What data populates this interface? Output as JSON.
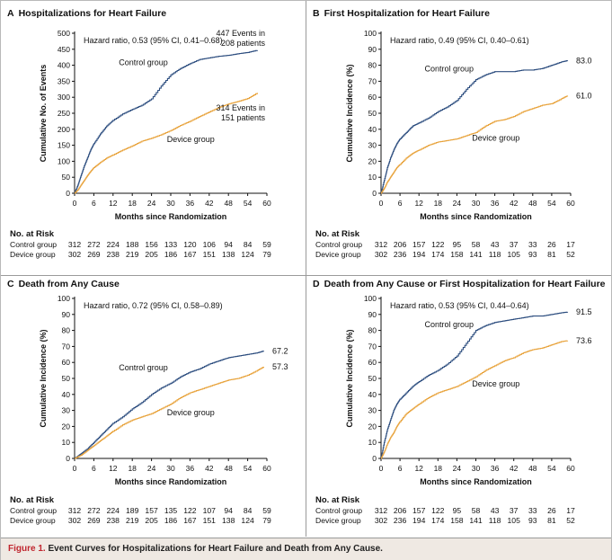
{
  "colors": {
    "control": "#2b4c7e",
    "device": "#e8a33c",
    "caption_label": "#c0262f"
  },
  "caption": {
    "label": "Figure 1.",
    "text": "Event Curves for Hospitalizations for Heart Failure and Death from Any Cause."
  },
  "common": {
    "xlabel": "Months since Randomization",
    "risk_header": "No. at Risk",
    "control_label": "Control group",
    "device_label": "Device group"
  },
  "chart_data": [
    {
      "letter": "A",
      "title": "Hospitalizations for Heart Failure",
      "type": "line",
      "ylabel": "Cumulative No. of Events",
      "ylim": [
        0,
        500
      ],
      "yticks": [
        0,
        50,
        100,
        150,
        200,
        250,
        300,
        350,
        400,
        450,
        500
      ],
      "xlim": [
        0,
        60
      ],
      "xticks": [
        0,
        6,
        12,
        18,
        24,
        30,
        36,
        42,
        48,
        54,
        60
      ],
      "hazard_ratio": "Hazard ratio, 0.53 (95% CI, 0.41–0.68)",
      "control_end": "",
      "device_end": "",
      "control_events_note": [
        "447 Events in",
        "208 patients"
      ],
      "device_events_note": [
        "314 Events in",
        "151 patients"
      ],
      "series": [
        {
          "name": "Control group",
          "x": [
            0,
            1,
            2,
            3,
            4,
            5,
            6,
            8,
            10,
            12,
            15,
            18,
            21,
            24,
            27,
            30,
            33,
            36,
            39,
            42,
            45,
            48,
            51,
            54,
            57
          ],
          "y": [
            0,
            25,
            55,
            85,
            110,
            135,
            155,
            185,
            210,
            228,
            248,
            262,
            275,
            295,
            335,
            370,
            390,
            405,
            418,
            423,
            428,
            431,
            436,
            440,
            447
          ]
        },
        {
          "name": "Device group",
          "x": [
            0,
            1,
            2,
            3,
            4,
            5,
            6,
            8,
            10,
            12,
            15,
            18,
            21,
            24,
            27,
            30,
            33,
            36,
            39,
            42,
            45,
            48,
            51,
            54,
            57
          ],
          "y": [
            0,
            10,
            25,
            40,
            55,
            68,
            80,
            96,
            110,
            120,
            135,
            148,
            163,
            172,
            183,
            196,
            212,
            225,
            240,
            254,
            268,
            279,
            287,
            296,
            314
          ]
        }
      ],
      "at_risk": {
        "control": [
          "312",
          "272",
          "224",
          "188",
          "156",
          "133",
          "120",
          "106",
          "94",
          "84",
          "59"
        ],
        "device": [
          "302",
          "269",
          "238",
          "219",
          "205",
          "186",
          "167",
          "151",
          "138",
          "124",
          "79"
        ]
      }
    },
    {
      "letter": "B",
      "title": "First Hospitalization for Heart Failure",
      "type": "line",
      "ylabel": "Cumulative Incidence (%)",
      "ylim": [
        0,
        100
      ],
      "yticks": [
        0,
        10,
        20,
        30,
        40,
        50,
        60,
        70,
        80,
        90,
        100
      ],
      "xlim": [
        0,
        60
      ],
      "xticks": [
        0,
        6,
        12,
        18,
        24,
        30,
        36,
        42,
        48,
        54,
        60
      ],
      "hazard_ratio": "Hazard ratio, 0.49 (95% CI, 0.40–0.61)",
      "control_end": "83.0",
      "device_end": "61.0",
      "control_events_note": [],
      "device_events_note": [],
      "series": [
        {
          "name": "Control group",
          "x": [
            0,
            1,
            2,
            3,
            4,
            5,
            6,
            8,
            10,
            12,
            15,
            18,
            21,
            24,
            27,
            30,
            33,
            36,
            39,
            42,
            45,
            48,
            51,
            54,
            57,
            59
          ],
          "y": [
            0,
            8,
            16,
            22,
            27,
            31,
            34,
            38,
            42,
            44,
            47,
            51,
            54,
            58,
            65,
            71,
            74,
            76,
            76,
            76,
            77,
            77,
            78,
            80,
            82,
            83
          ]
        },
        {
          "name": "Device group",
          "x": [
            0,
            1,
            2,
            3,
            4,
            5,
            6,
            8,
            10,
            12,
            15,
            18,
            21,
            24,
            27,
            30,
            33,
            36,
            39,
            42,
            45,
            48,
            51,
            54,
            57,
            59
          ],
          "y": [
            0,
            3,
            7,
            10,
            13,
            16,
            18,
            22,
            25,
            27,
            30,
            32,
            33,
            34,
            36,
            38,
            42,
            45,
            46,
            48,
            51,
            53,
            55,
            56,
            59,
            61
          ]
        }
      ],
      "at_risk": {
        "control": [
          "312",
          "206",
          "157",
          "122",
          "95",
          "58",
          "43",
          "37",
          "33",
          "26",
          "17"
        ],
        "device": [
          "302",
          "236",
          "194",
          "174",
          "158",
          "141",
          "118",
          "105",
          "93",
          "81",
          "52"
        ]
      }
    },
    {
      "letter": "C",
      "title": "Death from Any Cause",
      "type": "line",
      "ylabel": "Cumulative Incidence (%)",
      "ylim": [
        0,
        100
      ],
      "yticks": [
        0,
        10,
        20,
        30,
        40,
        50,
        60,
        70,
        80,
        90,
        100
      ],
      "xlim": [
        0,
        60
      ],
      "xticks": [
        0,
        6,
        12,
        18,
        24,
        30,
        36,
        42,
        48,
        54,
        60
      ],
      "hazard_ratio": "Hazard ratio, 0.72 (95% CI, 0.58–0.89)",
      "control_end": "67.2",
      "device_end": "57.3",
      "control_events_note": [],
      "device_events_note": [],
      "series": [
        {
          "name": "Control group",
          "x": [
            0,
            2,
            4,
            6,
            8,
            10,
            12,
            15,
            18,
            21,
            24,
            27,
            30,
            33,
            36,
            39,
            42,
            45,
            48,
            51,
            54,
            57,
            59
          ],
          "y": [
            0,
            3,
            6,
            10,
            14,
            18,
            22,
            26,
            31,
            35,
            40,
            44,
            47,
            51,
            54,
            56,
            59,
            61,
            63,
            64,
            65,
            66,
            67.2
          ]
        },
        {
          "name": "Device group",
          "x": [
            0,
            2,
            4,
            6,
            8,
            10,
            12,
            15,
            18,
            21,
            24,
            27,
            30,
            33,
            36,
            39,
            42,
            45,
            48,
            51,
            54,
            57,
            59
          ],
          "y": [
            0,
            2,
            5,
            8,
            11,
            14,
            17,
            21,
            24,
            26,
            28,
            31,
            34,
            38,
            41,
            43,
            45,
            47,
            49,
            50,
            52,
            55,
            57.3
          ]
        }
      ],
      "at_risk": {
        "control": [
          "312",
          "272",
          "224",
          "189",
          "157",
          "135",
          "122",
          "107",
          "94",
          "84",
          "59"
        ],
        "device": [
          "302",
          "269",
          "238",
          "219",
          "205",
          "186",
          "167",
          "151",
          "138",
          "124",
          "79"
        ]
      }
    },
    {
      "letter": "D",
      "title": "Death from Any Cause or First Hospitalization for Heart Failure",
      "type": "line",
      "ylabel": "Cumulative Incidence (%)",
      "ylim": [
        0,
        100
      ],
      "yticks": [
        0,
        10,
        20,
        30,
        40,
        50,
        60,
        70,
        80,
        90,
        100
      ],
      "xlim": [
        0,
        60
      ],
      "xticks": [
        0,
        6,
        12,
        18,
        24,
        30,
        36,
        42,
        48,
        54,
        60
      ],
      "hazard_ratio": "Hazard ratio, 0.53 (95% CI, 0.44–0.64)",
      "control_end": "91.5",
      "device_end": "73.6",
      "control_events_note": [],
      "device_events_note": [],
      "series": [
        {
          "name": "Control group",
          "x": [
            0,
            1,
            2,
            3,
            4,
            5,
            6,
            8,
            10,
            12,
            15,
            18,
            21,
            24,
            27,
            30,
            33,
            36,
            39,
            42,
            45,
            48,
            51,
            54,
            57,
            59
          ],
          "y": [
            0,
            10,
            18,
            24,
            30,
            34,
            37,
            41,
            45,
            48,
            52,
            55,
            59,
            64,
            72,
            80,
            83,
            85,
            86,
            87,
            88,
            89,
            89,
            90,
            91,
            91.5
          ]
        },
        {
          "name": "Device group",
          "x": [
            0,
            1,
            2,
            3,
            4,
            5,
            6,
            8,
            10,
            12,
            15,
            18,
            21,
            24,
            27,
            30,
            33,
            36,
            39,
            42,
            45,
            48,
            51,
            54,
            57,
            59
          ],
          "y": [
            0,
            4,
            9,
            13,
            16,
            20,
            23,
            28,
            31,
            34,
            38,
            41,
            43,
            45,
            48,
            51,
            55,
            58,
            61,
            63,
            66,
            68,
            69,
            71,
            73,
            73.6
          ]
        }
      ],
      "at_risk": {
        "control": [
          "312",
          "206",
          "157",
          "122",
          "95",
          "58",
          "43",
          "37",
          "33",
          "26",
          "17"
        ],
        "device": [
          "302",
          "236",
          "194",
          "174",
          "158",
          "141",
          "118",
          "105",
          "93",
          "81",
          "52"
        ]
      }
    }
  ]
}
